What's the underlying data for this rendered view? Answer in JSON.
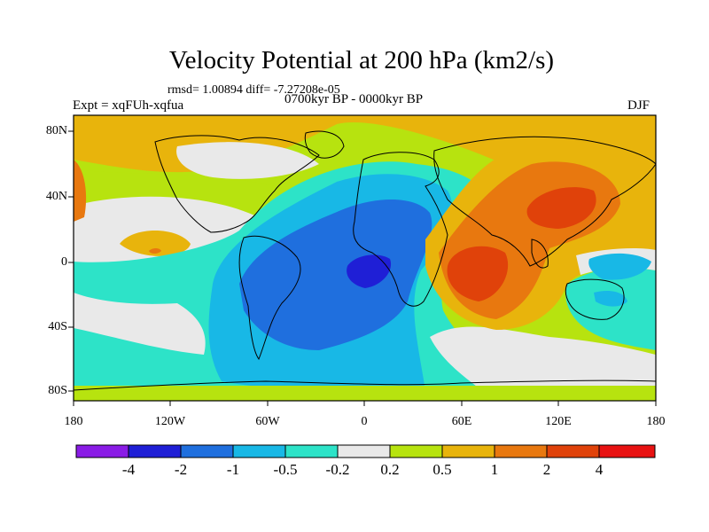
{
  "title": "Velocity Potential at 200 hPa (km2/s)",
  "stats": "rmsd= 1.00894  diff= -7.27208e-05",
  "experiment": "Expt = xqFUh-xqfua",
  "period": "0700kyr BP - 0000kyr BP",
  "season": "DJF",
  "axes": {
    "y_ticks": [
      "80N",
      "40N",
      "0",
      "40S",
      "80S"
    ],
    "x_ticks": [
      "180",
      "120W",
      "60W",
      "0",
      "60E",
      "120E",
      "180"
    ]
  },
  "colorbar": {
    "labels": [
      "-4",
      "-2",
      "-1",
      "-0.5",
      "-0.2",
      "0.2",
      "0.5",
      "1",
      "2",
      "4"
    ],
    "colors": [
      "#8a1ce6",
      "#1f1fd6",
      "#1f6fde",
      "#18b8e6",
      "#2de3c8",
      "#e9e9e9",
      "#b7e30f",
      "#e8b40c",
      "#e8780f",
      "#e0420a",
      "#e81212"
    ]
  }
}
